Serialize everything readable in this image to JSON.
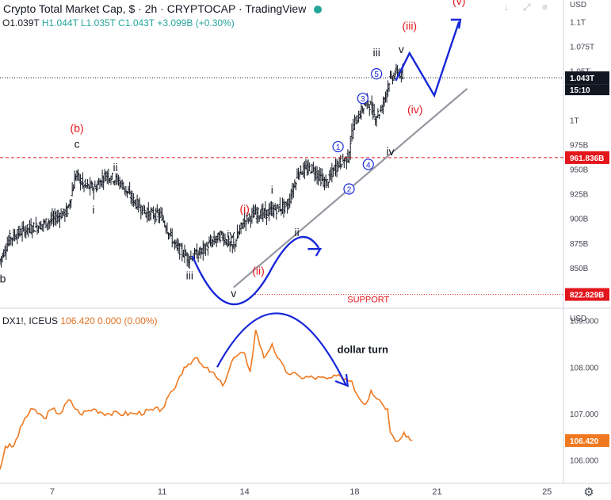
{
  "header": {
    "title": "Crypto Total Market Cap, $ · 2h · CRYPTOCAP · TradingView",
    "open": "O1.039T",
    "high": "H1.044T",
    "low": "L1.035T",
    "close": "C1.043T",
    "change": "+3.099B (+0.30%)"
  },
  "sub_header": {
    "symbol": "DX1!, ICEUS",
    "values": "106.420  0.000 (0.00%)"
  },
  "axis": {
    "currency_main": "USD",
    "currency_sub": "USD",
    "main_ticks": [
      "1.1T",
      "1.075T",
      "1.05T",
      "1T",
      "975B",
      "950B",
      "925B",
      "900B",
      "875B",
      "850B"
    ],
    "sub_ticks": [
      "109.000",
      "108.000",
      "107.000",
      "106.000"
    ],
    "x_ticks": [
      "7",
      "11",
      "14",
      "18",
      "21",
      "25"
    ],
    "price_tag": "1.043T",
    "timer": "15:10",
    "resistance_tag": "961.836B",
    "support_tag": "822.829B",
    "dx_tag": "106.420"
  },
  "annotations": {
    "support": "SUPPORT",
    "dollar_turn": "dollar turn",
    "waves": [
      "(b)",
      "c",
      "b",
      "ii",
      "i",
      "iii",
      "iv",
      "v",
      "(i)",
      "(ii)",
      "i",
      "ii",
      "iii",
      "iv",
      "v",
      "(iii)",
      "(iv)",
      "(v)",
      "1",
      "2",
      "3",
      "4",
      "5"
    ]
  },
  "colors": {
    "bar": "#131722",
    "label_red": "#e3161c",
    "arrow": "#1727d8",
    "dx_line": "#f0791f",
    "support": "#e3161c",
    "trendline": "#9598a1"
  },
  "chart_data": [
    {
      "type": "line",
      "title": "Crypto Total Market Cap, $ · 2h · CRYPTOCAP · TradingView",
      "subtitle": "O1.039T H1.044T L1.035T C1.043T +3.099B (+0.30%)",
      "ylabel": "USD",
      "x_ticks": [
        "7",
        "11",
        "14",
        "18",
        "21",
        "25"
      ],
      "y_ticks": [
        1100,
        1075,
        1050,
        1000,
        975,
        950,
        925,
        900,
        875,
        850
      ],
      "ylim": [
        808,
        1122
      ],
      "xlim": [
        5.1,
        25.6
      ],
      "series": [
        {
          "x": [
            5.1,
            5.5,
            6.0,
            6.5,
            7.0,
            7.6,
            7.9,
            8.2,
            8.6,
            9.0,
            9.5,
            10.0,
            10.5,
            11.0,
            11.5,
            12.0,
            12.4,
            12.8,
            13.2,
            13.6,
            14.0,
            14.4,
            14.8,
            15.2,
            15.6,
            16.0,
            16.5,
            17.0,
            17.4,
            17.8,
            18.0,
            18.2,
            18.5,
            18.8,
            19.0,
            19.3,
            19.6,
            19.8
          ],
          "values": [
            855,
            880,
            888,
            892,
            898,
            908,
            945,
            933,
            931,
            945,
            937,
            918,
            905,
            903,
            873,
            860,
            865,
            875,
            883,
            870,
            897,
            905,
            905,
            910,
            913,
            948,
            951,
            935,
            955,
            962,
            995,
            1005,
            1020,
            1003,
            1010,
            1040,
            1050,
            1043
          ]
        }
      ],
      "annotations": [
        {
          "text": "(b)",
          "x": 7.9,
          "y": 988
        },
        {
          "text": "c",
          "x": 7.9,
          "y": 972
        },
        {
          "text": "b",
          "x": 5.2,
          "y": 835
        },
        {
          "text": "ii",
          "x": 9.3,
          "y": 948
        },
        {
          "text": "i",
          "x": 8.5,
          "y": 905
        },
        {
          "text": "iii",
          "x": 12.0,
          "y": 838
        },
        {
          "text": "iv",
          "x": 13.5,
          "y": 880
        },
        {
          "text": "v",
          "x": 13.6,
          "y": 820
        },
        {
          "text": "(i)",
          "x": 14.0,
          "y": 906
        },
        {
          "text": "(ii)",
          "x": 14.5,
          "y": 843
        },
        {
          "text": "i",
          "x": 15.0,
          "y": 925
        },
        {
          "text": "ii",
          "x": 15.9,
          "y": 882
        },
        {
          "text": "iii",
          "x": 18.8,
          "y": 1065
        },
        {
          "text": "iv",
          "x": 19.3,
          "y": 964
        },
        {
          "text": "v",
          "x": 19.7,
          "y": 1068
        },
        {
          "text": "(iii)",
          "x": 20.0,
          "y": 1092
        },
        {
          "text": "(iv)",
          "x": 20.2,
          "y": 1007
        },
        {
          "text": "(v)",
          "x": 21.8,
          "y": 1117
        },
        {
          "text": "1",
          "x": 17.4,
          "y": 973
        },
        {
          "text": "2",
          "x": 17.8,
          "y": 930
        },
        {
          "text": "3",
          "x": 18.3,
          "y": 1022
        },
        {
          "text": "4",
          "x": 18.5,
          "y": 955
        },
        {
          "text": "5",
          "x": 18.8,
          "y": 1047
        },
        {
          "text": "SUPPORT",
          "x": 18.5,
          "y": 815
        }
      ],
      "price_levels": [
        {
          "label": "961.836B",
          "value": 961.836
        },
        {
          "label": "822.829B",
          "value": 822.829
        }
      ],
      "last": {
        "label": "1.043T",
        "value": 1043
      }
    },
    {
      "type": "line",
      "title": "DX1!, ICEUS",
      "subtitle": "106.420 0.000 (0.00%)",
      "ylabel": "USD",
      "x_ticks": [
        "7",
        "11",
        "14",
        "18",
        "21",
        "25"
      ],
      "y_ticks": [
        109,
        108,
        107,
        106
      ],
      "ylim": [
        105.5,
        109.25
      ],
      "xlim": [
        5.1,
        25.6
      ],
      "series": [
        {
          "x": [
            5.1,
            5.3,
            5.6,
            6.0,
            6.3,
            6.7,
            7.0,
            7.3,
            7.6,
            8.0,
            8.5,
            9.0,
            10.0,
            11.0,
            11.4,
            11.8,
            12.2,
            12.5,
            12.8,
            13.2,
            13.6,
            14.0,
            14.2,
            14.4,
            14.7,
            15.0,
            15.2,
            15.5,
            16.0,
            17.0,
            17.5,
            17.9,
            18.1,
            18.4,
            18.6,
            18.9,
            19.2,
            19.3,
            19.5,
            19.8,
            20.1
          ],
          "values": [
            105.8,
            106.3,
            106.3,
            106.9,
            107.1,
            106.9,
            107.1,
            107.0,
            107.3,
            107.0,
            107.1,
            107.0,
            107.0,
            107.1,
            107.5,
            108.0,
            108.2,
            108.0,
            107.9,
            107.6,
            108.2,
            108.3,
            107.9,
            108.8,
            108.2,
            108.5,
            108.2,
            107.9,
            107.8,
            107.75,
            107.8,
            107.7,
            107.4,
            107.2,
            107.5,
            107.3,
            107.1,
            106.6,
            106.4,
            106.6,
            106.42
          ]
        }
      ],
      "annotations": [
        {
          "text": "dollar turn",
          "x": 18.3,
          "y": 108.3
        }
      ],
      "last": {
        "label": "106.420",
        "value": 106.42
      }
    }
  ]
}
